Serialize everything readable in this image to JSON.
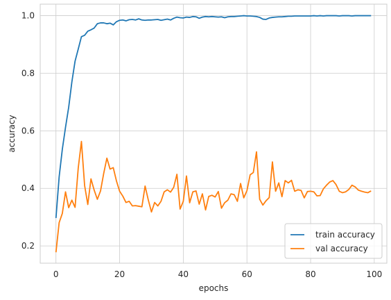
{
  "chart_data": {
    "type": "line",
    "xlabel": "epochs",
    "ylabel": "accuracy",
    "xlim": [
      -4.95,
      103.95
    ],
    "ylim": [
      0.14,
      1.04
    ],
    "xticks": [
      0,
      20,
      40,
      60,
      80,
      100
    ],
    "yticks": [
      0.2,
      0.4,
      0.6,
      0.8,
      1.0
    ],
    "grid": true,
    "legend_position": "lower right",
    "series": [
      {
        "name": "train accuracy",
        "color": "#1f77b4",
        "values": [
          0.297,
          0.44,
          0.536,
          0.612,
          0.682,
          0.77,
          0.842,
          0.884,
          0.927,
          0.932,
          0.946,
          0.951,
          0.957,
          0.972,
          0.975,
          0.975,
          0.972,
          0.974,
          0.968,
          0.979,
          0.984,
          0.985,
          0.982,
          0.986,
          0.987,
          0.985,
          0.989,
          0.985,
          0.984,
          0.985,
          0.985,
          0.986,
          0.987,
          0.984,
          0.986,
          0.988,
          0.985,
          0.991,
          0.995,
          0.993,
          0.992,
          0.995,
          0.994,
          0.997,
          0.996,
          0.991,
          0.995,
          0.997,
          0.996,
          0.997,
          0.996,
          0.995,
          0.996,
          0.993,
          0.996,
          0.997,
          0.997,
          0.998,
          0.999,
          1.0,
          0.999,
          0.999,
          0.998,
          0.997,
          0.994,
          0.988,
          0.987,
          0.992,
          0.994,
          0.995,
          0.996,
          0.996,
          0.997,
          0.998,
          0.998,
          0.999,
          0.999,
          0.999,
          0.999,
          0.999,
          0.999,
          1.0,
          0.999,
          1.0,
          0.999,
          1.0,
          1.0,
          1.0,
          1.0,
          0.999,
          1.0,
          1.0,
          1.0,
          0.999,
          1.0,
          1.0,
          1.0,
          1.0,
          1.0,
          1.0
        ]
      },
      {
        "name": "val accuracy",
        "color": "#ff7f0e",
        "values": [
          0.178,
          0.281,
          0.313,
          0.388,
          0.333,
          0.359,
          0.334,
          0.471,
          0.563,
          0.41,
          0.344,
          0.433,
          0.394,
          0.362,
          0.391,
          0.452,
          0.505,
          0.467,
          0.472,
          0.426,
          0.39,
          0.373,
          0.351,
          0.355,
          0.339,
          0.34,
          0.338,
          0.336,
          0.408,
          0.36,
          0.318,
          0.351,
          0.339,
          0.355,
          0.388,
          0.395,
          0.387,
          0.404,
          0.449,
          0.328,
          0.355,
          0.443,
          0.35,
          0.388,
          0.391,
          0.345,
          0.381,
          0.325,
          0.372,
          0.376,
          0.37,
          0.389,
          0.331,
          0.35,
          0.359,
          0.381,
          0.378,
          0.355,
          0.417,
          0.367,
          0.392,
          0.447,
          0.455,
          0.527,
          0.362,
          0.342,
          0.357,
          0.368,
          0.492,
          0.39,
          0.419,
          0.371,
          0.427,
          0.419,
          0.428,
          0.39,
          0.395,
          0.393,
          0.367,
          0.389,
          0.39,
          0.388,
          0.374,
          0.375,
          0.398,
          0.411,
          0.422,
          0.427,
          0.413,
          0.39,
          0.385,
          0.388,
          0.396,
          0.411,
          0.405,
          0.394,
          0.39,
          0.387,
          0.385,
          0.391
        ]
      }
    ]
  }
}
